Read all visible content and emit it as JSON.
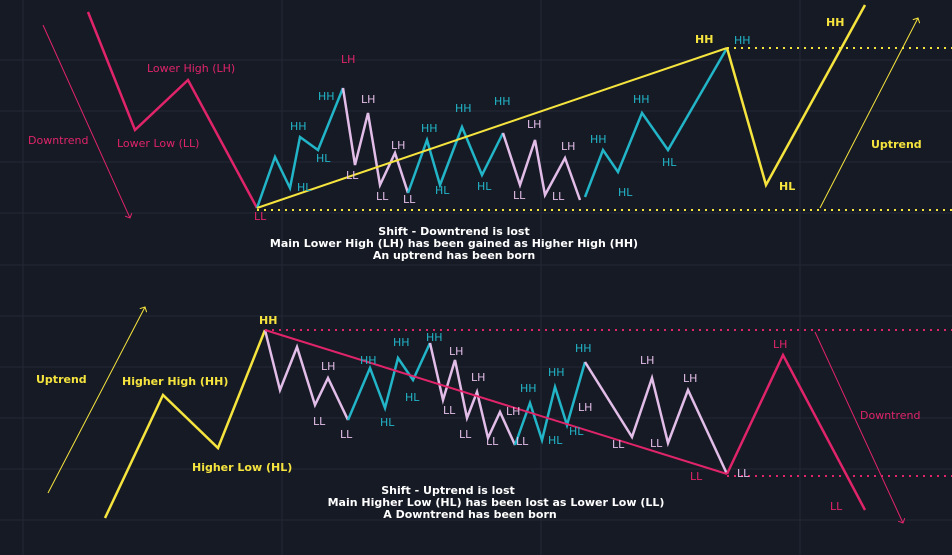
{
  "colors": {
    "background": "#161a25",
    "grid": "#232835",
    "downtrend": "#e0246a",
    "swing_up": "#22b5c8",
    "swing_down": "#e2bde8",
    "uptrend": "#f6e43e",
    "caption": "#ffffff"
  },
  "top": {
    "title_labels": {
      "lower_high": "Lower High (LH)",
      "lower_low": "Lower Low (LL)",
      "downtrend": "Downtrend",
      "uptrend": "Uptrend"
    },
    "swing_labels": [
      {
        "t": "LH",
        "c": "downtrend"
      },
      {
        "t": "LL",
        "c": "downtrend"
      },
      {
        "t": "HH",
        "c": "swing_up"
      },
      {
        "t": "HH",
        "c": "swing_up"
      },
      {
        "t": "HL",
        "c": "swing_up"
      },
      {
        "t": "HL",
        "c": "swing_up"
      },
      {
        "t": "LH",
        "c": "swing_down"
      },
      {
        "t": "LL",
        "c": "swing_down"
      },
      {
        "t": "LH",
        "c": "swing_down"
      },
      {
        "t": "LL",
        "c": "swing_down"
      },
      {
        "t": "LL",
        "c": "swing_down"
      },
      {
        "t": "HH",
        "c": "swing_up"
      },
      {
        "t": "HL",
        "c": "swing_up"
      },
      {
        "t": "HH",
        "c": "swing_up"
      },
      {
        "t": "HL",
        "c": "swing_up"
      },
      {
        "t": "HH",
        "c": "swing_up"
      },
      {
        "t": "LH",
        "c": "swing_down"
      },
      {
        "t": "LL",
        "c": "swing_down"
      },
      {
        "t": "LH",
        "c": "swing_down"
      },
      {
        "t": "LL",
        "c": "swing_down"
      },
      {
        "t": "HH",
        "c": "swing_up"
      },
      {
        "t": "HL",
        "c": "swing_up"
      },
      {
        "t": "HH",
        "c": "swing_up"
      },
      {
        "t": "HL",
        "c": "swing_up"
      },
      {
        "t": "HH",
        "c": "uptrend"
      },
      {
        "t": "HH",
        "c": "swing_up"
      },
      {
        "t": "HL",
        "c": "uptrend"
      },
      {
        "t": "HH",
        "c": "uptrend"
      }
    ],
    "caption": [
      "Shift - Downtrend is lost",
      "Main Lower High (LH) has been gained as Higher High (HH)",
      "An uptrend has been born"
    ]
  },
  "bottom": {
    "title_labels": {
      "uptrend": "Uptrend",
      "higher_high": "Higher High (HH)",
      "higher_low": "Higher Low (HL)",
      "downtrend": "Downtrend"
    },
    "swing_labels": [
      {
        "t": "HH",
        "c": "uptrend"
      },
      {
        "t": "LH",
        "c": "swing_down"
      },
      {
        "t": "LL",
        "c": "swing_down"
      },
      {
        "t": "LL",
        "c": "swing_down"
      },
      {
        "t": "HH",
        "c": "swing_up"
      },
      {
        "t": "HL",
        "c": "swing_up"
      },
      {
        "t": "HH",
        "c": "swing_up"
      },
      {
        "t": "HL",
        "c": "swing_up"
      },
      {
        "t": "HH",
        "c": "swing_up"
      },
      {
        "t": "LH",
        "c": "swing_down"
      },
      {
        "t": "LL",
        "c": "swing_down"
      },
      {
        "t": "LH",
        "c": "swing_down"
      },
      {
        "t": "LL",
        "c": "swing_down"
      },
      {
        "t": "LH",
        "c": "swing_down"
      },
      {
        "t": "LL",
        "c": "swing_down"
      },
      {
        "t": "LL",
        "c": "swing_down"
      },
      {
        "t": "HH",
        "c": "swing_up"
      },
      {
        "t": "HL",
        "c": "swing_up"
      },
      {
        "t": "HH",
        "c": "swing_up"
      },
      {
        "t": "HL",
        "c": "swing_up"
      },
      {
        "t": "HH",
        "c": "swing_up"
      },
      {
        "t": "LH",
        "c": "swing_down"
      },
      {
        "t": "LL",
        "c": "swing_down"
      },
      {
        "t": "LH",
        "c": "swing_down"
      },
      {
        "t": "LL",
        "c": "swing_down"
      },
      {
        "t": "LH",
        "c": "swing_down"
      },
      {
        "t": "LL",
        "c": "downtrend"
      },
      {
        "t": "LL",
        "c": "swing_down"
      },
      {
        "t": "LH",
        "c": "downtrend"
      },
      {
        "t": "LL",
        "c": "downtrend"
      }
    ],
    "caption": [
      "Shift - Uptrend is lost",
      "Main Higher Low (HL) has been lost as Lower Low (LL)",
      "A Downtrend has been born"
    ]
  }
}
